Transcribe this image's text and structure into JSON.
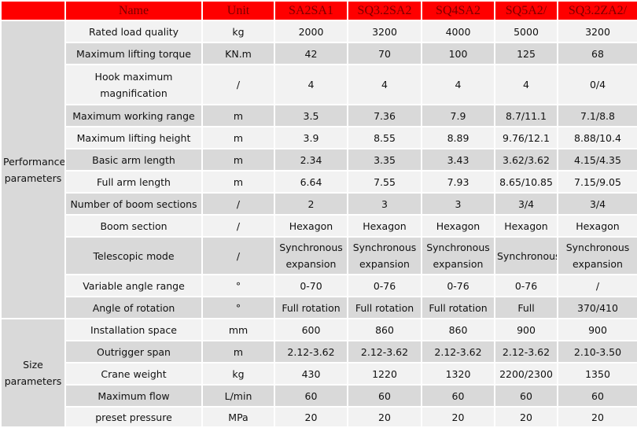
{
  "header": {
    "name": "Name",
    "unit": "Unit",
    "models": [
      "SA2SA1",
      "SQ3.2SA2",
      "SQ4SA2",
      "SQ5A2/",
      "SQ3.2ZA2/"
    ]
  },
  "colors": {
    "header_bg": "#ff0000",
    "header_text": "#7a0000",
    "row_light": "#f2f2f2",
    "row_dark": "#d9d9d9"
  },
  "groups": [
    {
      "label": "Performance parameters",
      "rows": [
        {
          "name": "Rated load quality",
          "unit": "kg",
          "values": [
            "2000",
            "3200",
            "4000",
            "5000",
            "3200"
          ]
        },
        {
          "name": "Maximum lifting torque",
          "unit": "KN.m",
          "values": [
            "42",
            "70",
            "100",
            "125",
            "68"
          ]
        },
        {
          "name": "Hook maximum magnification",
          "unit": "/",
          "values": [
            "4",
            "4",
            "4",
            "4",
            "0/4"
          ]
        },
        {
          "name": "Maximum working range",
          "unit": "m",
          "values": [
            "3.5",
            "7.36",
            "7.9",
            "8.7/11.1",
            "7.1/8.8"
          ]
        },
        {
          "name": "Maximum lifting height",
          "unit": "m",
          "values": [
            "3.9",
            "8.55",
            "8.89",
            "9.76/12.1",
            "8.88/10.4"
          ]
        },
        {
          "name": "Basic arm length",
          "unit": "m",
          "values": [
            "2.34",
            "3.35",
            "3.43",
            "3.62/3.62",
            "4.15/4.35"
          ]
        },
        {
          "name": "Full arm length",
          "unit": "m",
          "values": [
            "6.64",
            "7.55",
            "7.93",
            "8.65/10.85",
            "7.15/9.05"
          ]
        },
        {
          "name": "Number of boom sections",
          "unit": "/",
          "values": [
            "2",
            "3",
            "3",
            "3/4",
            "3/4"
          ]
        },
        {
          "name": "Boom section",
          "unit": "/",
          "values": [
            "Hexagon",
            "Hexagon",
            "Hexagon",
            "Hexagon",
            "Hexagon"
          ]
        },
        {
          "name": "Telescopic mode",
          "unit": "/",
          "values": [
            "Synchronous expansion",
            "Synchronous expansion",
            "Synchronous expansion",
            "Synchronous",
            "Synchronous expansion"
          ]
        },
        {
          "name": "Variable angle range",
          "unit": "°",
          "values": [
            "0-70",
            "0-76",
            "0-76",
            "0-76",
            "/"
          ]
        },
        {
          "name": "Angle of rotation",
          "unit": "°",
          "values": [
            "Full rotation",
            "Full rotation",
            "Full rotation",
            "Full",
            "370/410"
          ]
        }
      ]
    },
    {
      "label": "Size parameters",
      "rows": [
        {
          "name": "Installation space",
          "unit": "mm",
          "values": [
            "600",
            "860",
            "860",
            "900",
            "900"
          ]
        },
        {
          "name": "Outrigger span",
          "unit": "m",
          "values": [
            "2.12-3.62",
            "2.12-3.62",
            "2.12-3.62",
            "2.12-3.62",
            "2.10-3.50"
          ]
        },
        {
          "name": "Crane weight",
          "unit": "kg",
          "values": [
            "430",
            "1220",
            "1320",
            "2200/2300",
            "1350"
          ]
        },
        {
          "name": "Maximum flow",
          "unit": "L/min",
          "values": [
            "60",
            "60",
            "60",
            "60",
            "60"
          ]
        },
        {
          "name": "preset pressure",
          "unit": "MPa",
          "values": [
            "20",
            "20",
            "20",
            "20",
            "20"
          ]
        }
      ]
    }
  ]
}
